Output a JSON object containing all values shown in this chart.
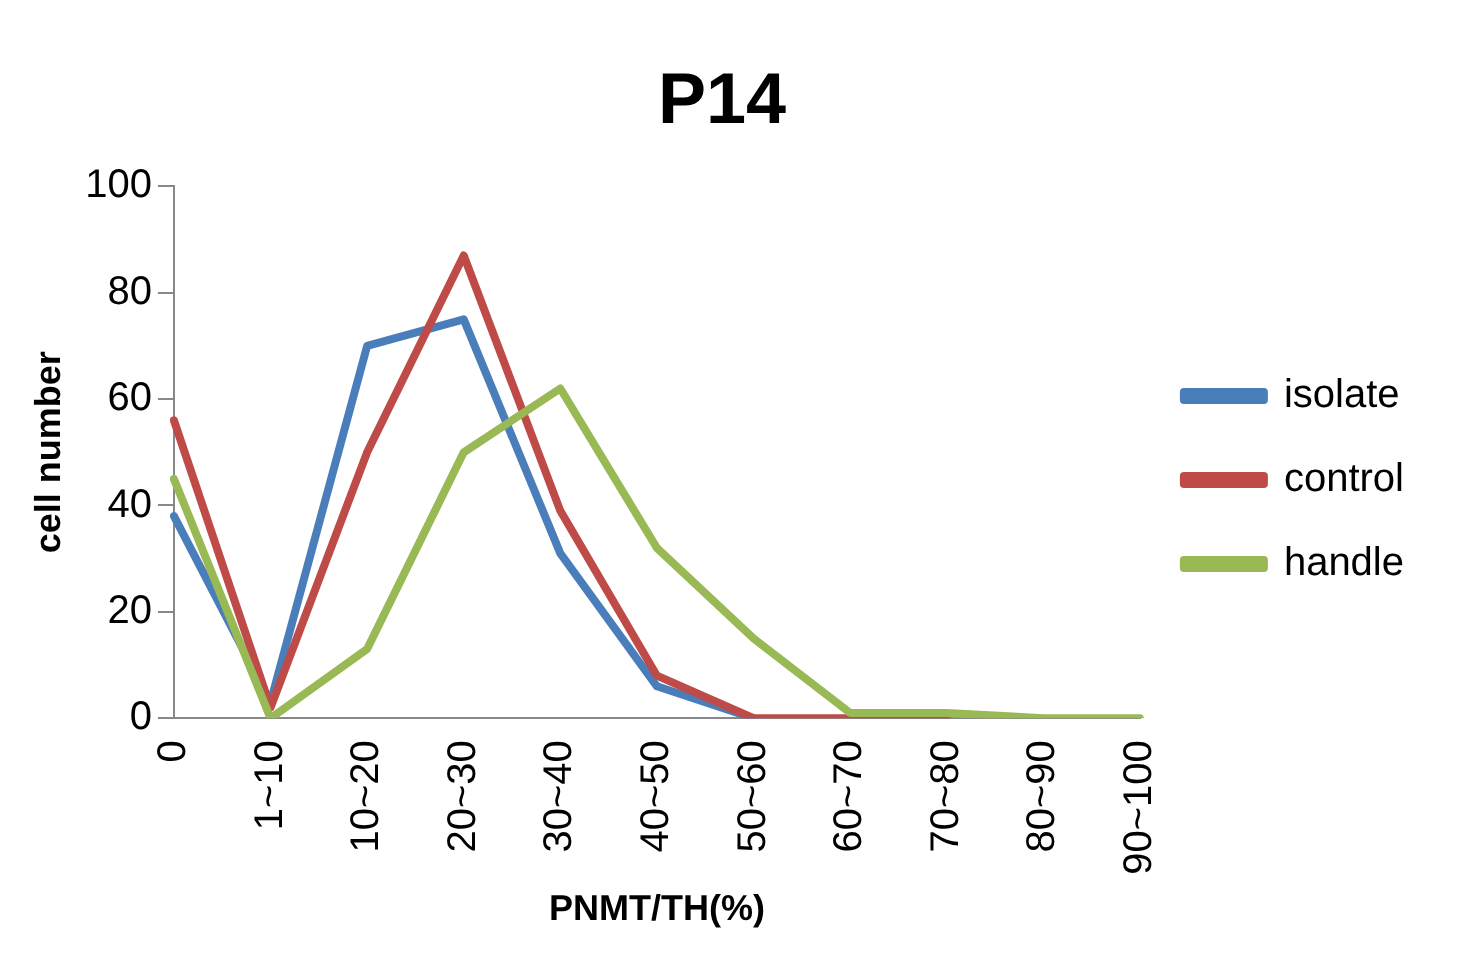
{
  "chart_data": {
    "type": "line",
    "title": "P14",
    "xlabel": "PNMT/TH(%)",
    "ylabel": "cell number",
    "categories": [
      "0",
      "1~10",
      "10~20",
      "20~30",
      "30~40",
      "40~50",
      "50~60",
      "60~70",
      "70~80",
      "80~90",
      "90~100"
    ],
    "series": [
      {
        "name": "isolate",
        "color": "#4a7ebb",
        "values": [
          38,
          3,
          70,
          75,
          31,
          6,
          0,
          null,
          null,
          null,
          null
        ]
      },
      {
        "name": "control",
        "color": "#be4b48",
        "values": [
          56,
          2,
          50,
          87,
          39,
          8,
          0,
          0,
          0,
          null,
          null
        ]
      },
      {
        "name": "handle",
        "color": "#98b954",
        "values": [
          45,
          0,
          13,
          50,
          62,
          32,
          15,
          1,
          1,
          0,
          0
        ]
      }
    ],
    "ylim": [
      0,
      100
    ],
    "yticks": [
      0,
      20,
      40,
      60,
      80,
      100
    ],
    "grid": false,
    "legend": "right",
    "marker": "none",
    "line_style": "solid"
  }
}
